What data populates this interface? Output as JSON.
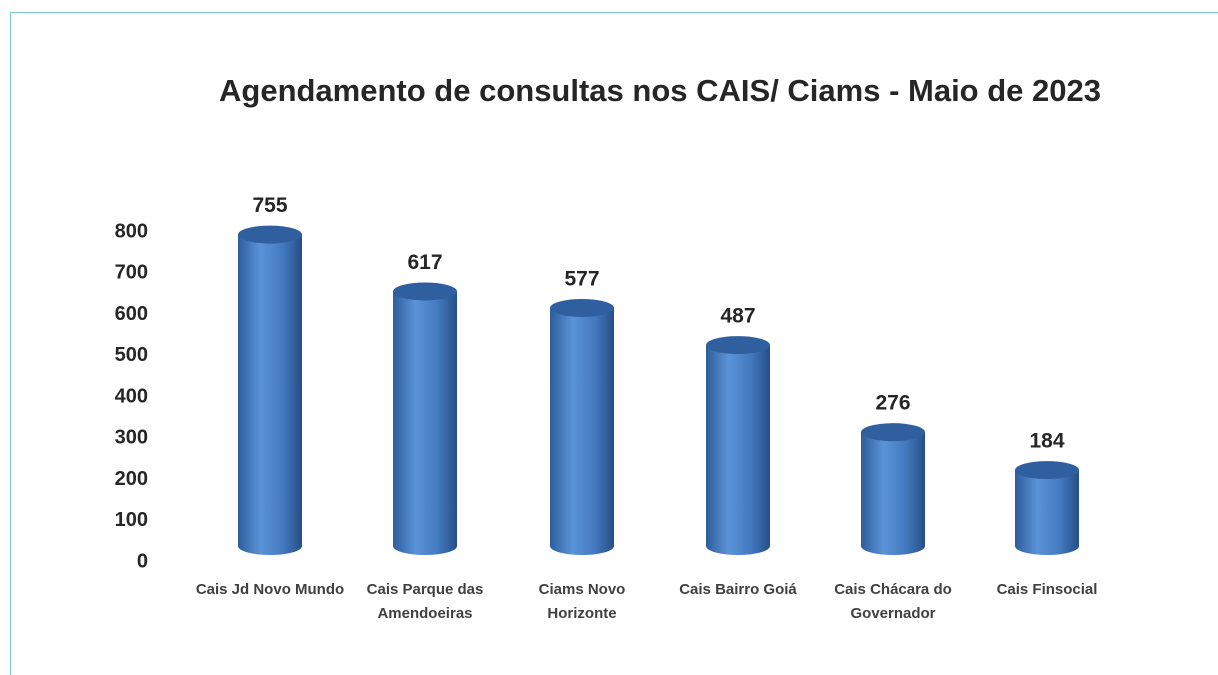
{
  "chart_data": {
    "type": "bar",
    "title": "Agendamento de consultas nos CAIS/ Ciams - Maio de 2023",
    "categories": [
      "Cais Jd Novo Mundo",
      "Cais Parque das Amendoeiras",
      "Ciams Novo Horizonte",
      "Cais Bairro Goiá",
      "Cais Chácara do Governador",
      "Cais Finsocial"
    ],
    "values": [
      755,
      617,
      577,
      487,
      276,
      184
    ],
    "color": "#4a7fc4",
    "ylim": [
      0,
      800
    ],
    "yticks": [
      0,
      100,
      200,
      300,
      400,
      500,
      600,
      700,
      800
    ],
    "grid": false
  }
}
